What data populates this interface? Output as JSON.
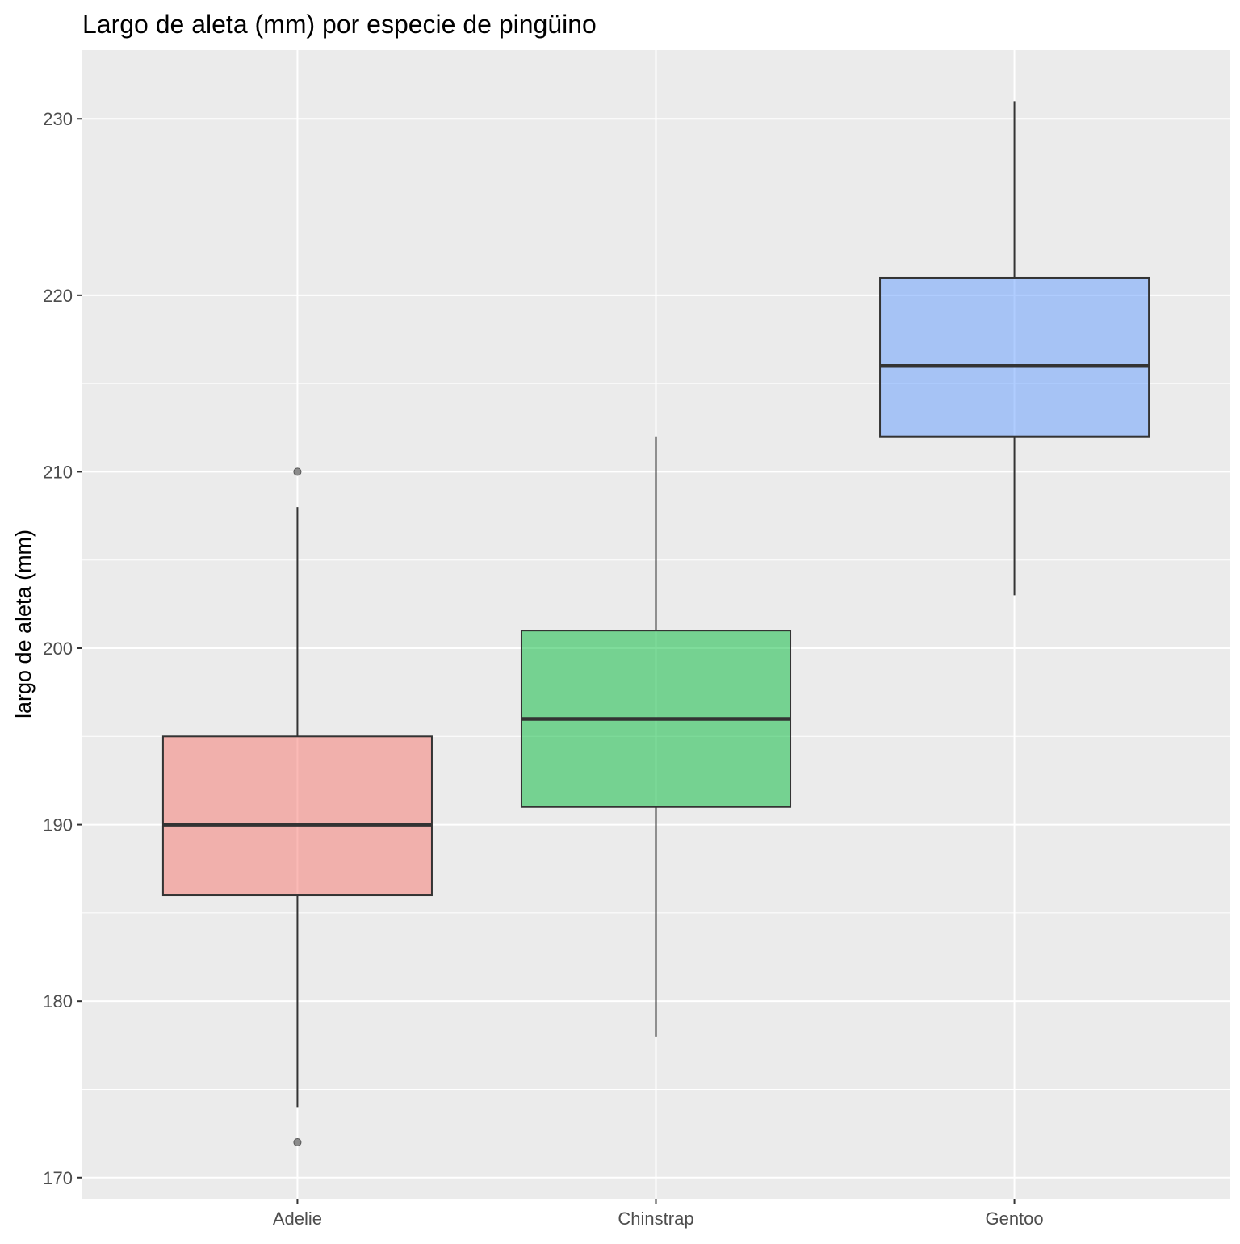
{
  "chart_data": {
    "type": "boxplot",
    "title": "Largo de aleta (mm) por especie de pingüino",
    "xlabel": "",
    "ylabel": "largo de aleta (mm)",
    "ylim": [
      168.8,
      233.9
    ],
    "y_ticks": [
      170,
      180,
      190,
      200,
      210,
      220,
      230
    ],
    "grid": true,
    "legend": "none",
    "categories": [
      "Adelie",
      "Chinstrap",
      "Gentoo"
    ],
    "boxes": [
      {
        "category": "Adelie",
        "color": "#F8766D",
        "q1": 186,
        "median": 190,
        "q3": 195,
        "whisker_low": 174,
        "whisker_high": 208,
        "outliers": [
          172,
          210
        ]
      },
      {
        "category": "Chinstrap",
        "color": "#00BA38",
        "q1": 191,
        "median": 196,
        "q3": 201,
        "whisker_low": 178,
        "whisker_high": 212,
        "outliers": []
      },
      {
        "category": "Gentoo",
        "color": "#619CFF",
        "q1": 212,
        "median": 216,
        "q3": 221,
        "whisker_low": 203,
        "whisker_high": 231,
        "outliers": []
      }
    ]
  },
  "colors": {
    "panel_background": "#EBEBEB",
    "grid_major": "#FFFFFF",
    "box_outline": "#333333"
  }
}
